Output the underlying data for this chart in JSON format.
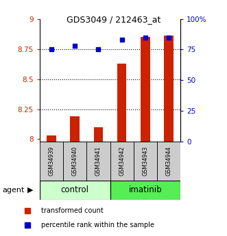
{
  "title": "GDS3049 / 212463_at",
  "samples": [
    "GSM34939",
    "GSM34940",
    "GSM34941",
    "GSM34942",
    "GSM34943",
    "GSM34944"
  ],
  "red_values": [
    8.03,
    8.19,
    8.1,
    8.63,
    8.85,
    8.86
  ],
  "blue_values": [
    75,
    78,
    75,
    83,
    85,
    85
  ],
  "ylim_left": [
    7.98,
    9.0
  ],
  "ylim_right": [
    0,
    100
  ],
  "yticks_left": [
    8.0,
    8.25,
    8.5,
    8.75,
    9.0
  ],
  "yticks_left_labels": [
    "8",
    "8.25",
    "8.5",
    "8.75",
    "9"
  ],
  "yticks_right": [
    0,
    25,
    50,
    75,
    100
  ],
  "yticks_right_labels": [
    "0",
    "25",
    "50",
    "75",
    "100%"
  ],
  "bar_color": "#cc2200",
  "dot_color": "#0000cc",
  "control_color": "#ccffcc",
  "imatinib_color": "#55ee55",
  "grid_lines": [
    8.25,
    8.5,
    8.75
  ],
  "agent_label": "agent",
  "legend_red": "transformed count",
  "legend_blue": "percentile rank within the sample",
  "bar_width": 0.4,
  "dot_size": 18,
  "title_fontsize": 9
}
